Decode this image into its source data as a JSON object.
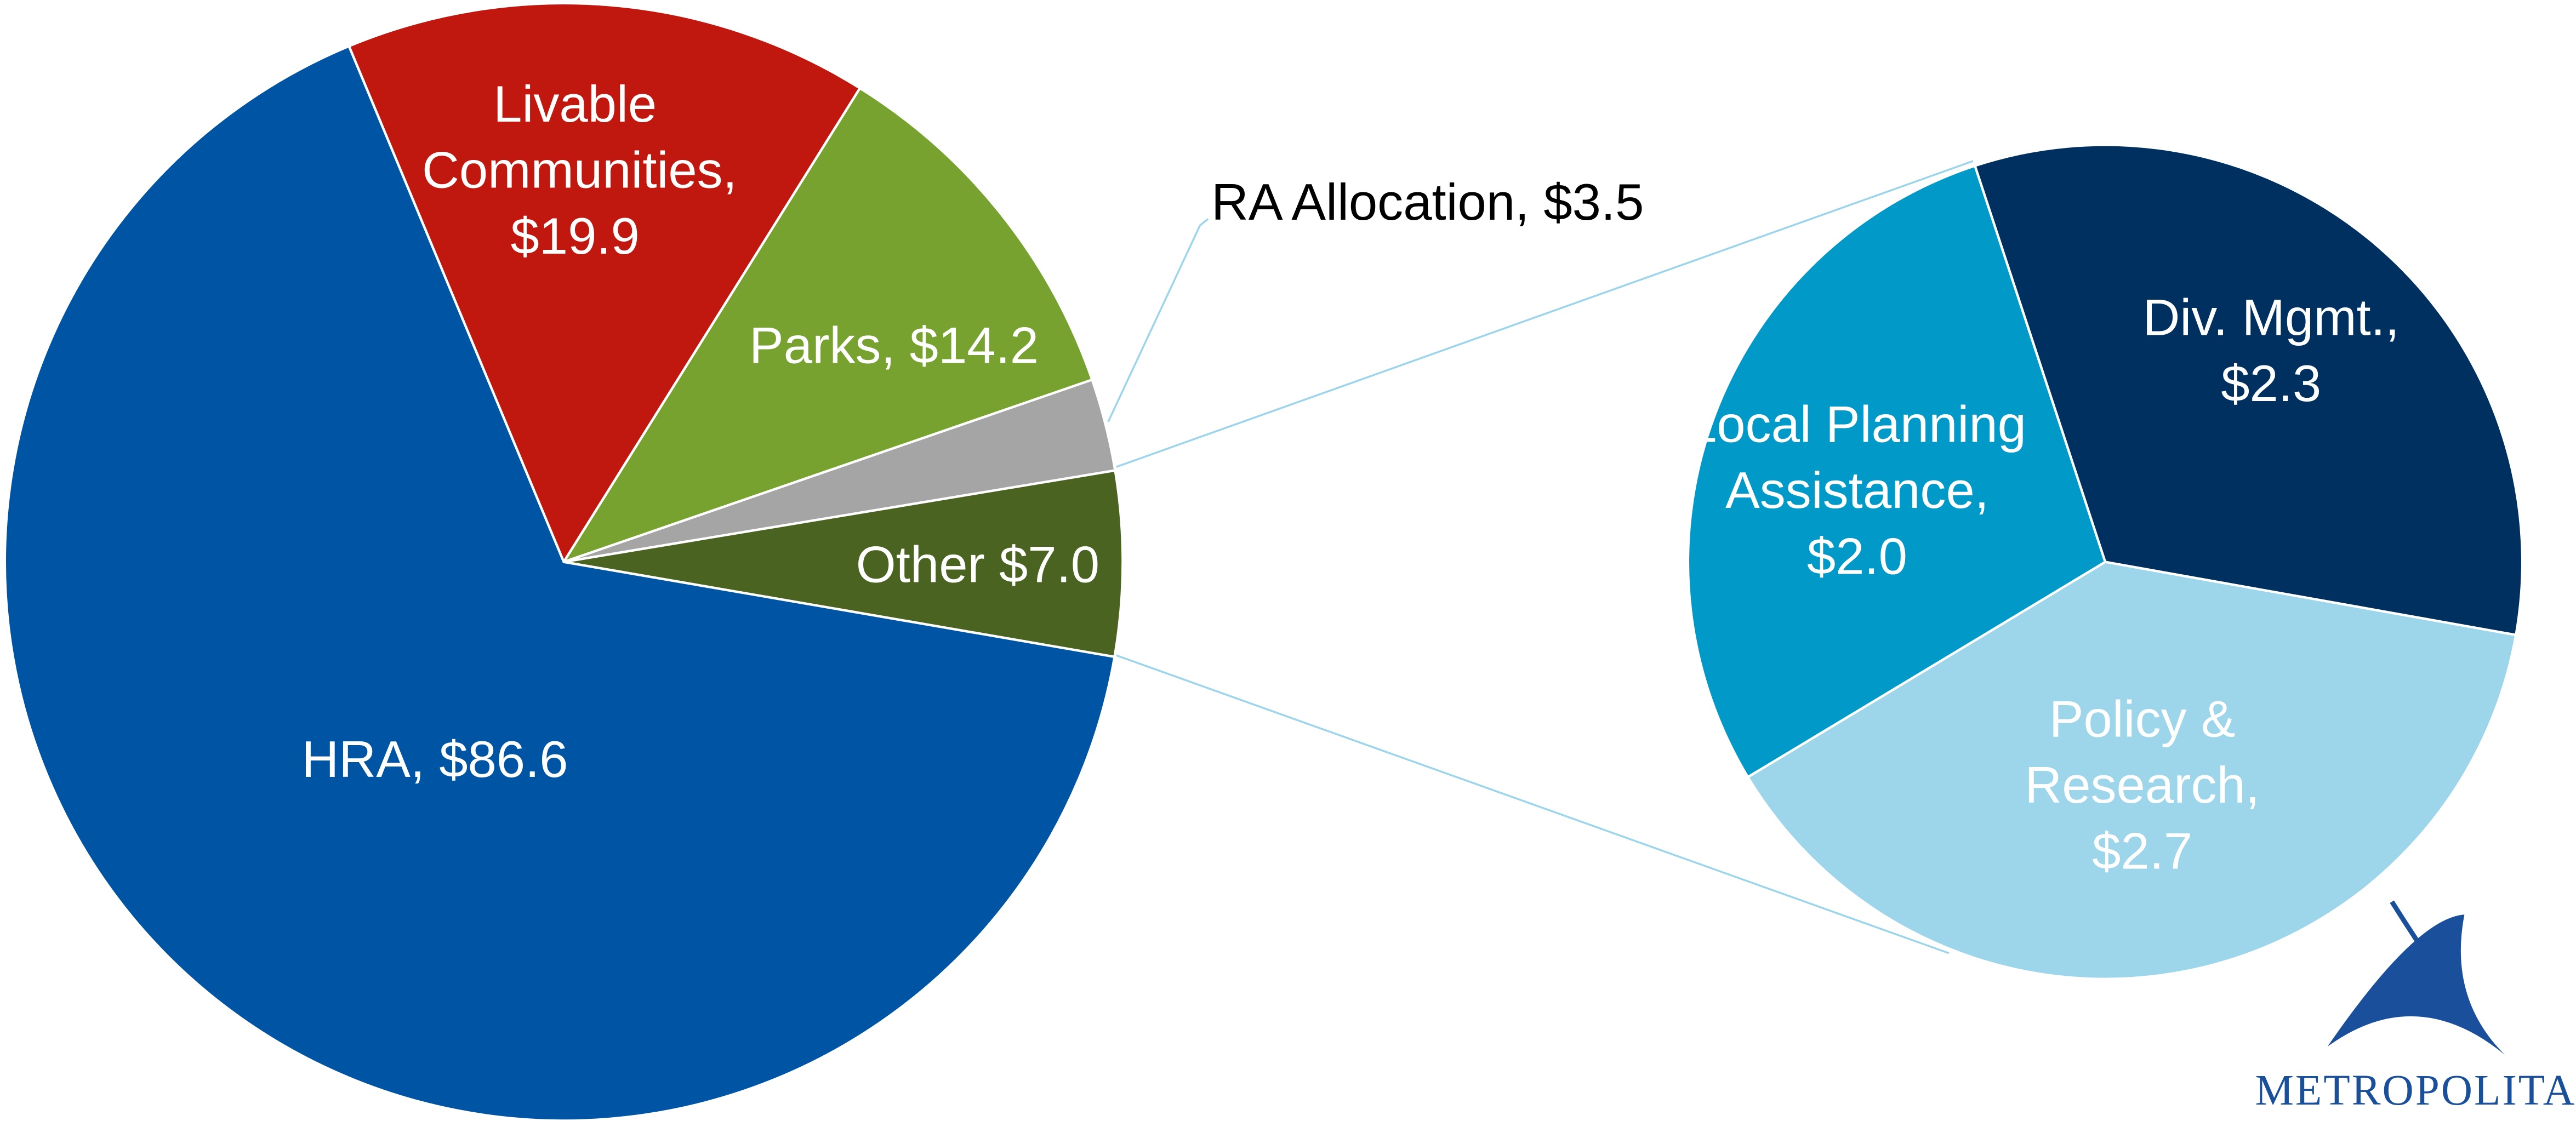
{
  "chart_data": [
    {
      "type": "pie",
      "categories": [
        "Livable Communities",
        "Parks",
        "RA Allocation",
        "Other",
        "HRA"
      ],
      "values": [
        19.9,
        14.2,
        3.5,
        7.0,
        86.6
      ],
      "labels": [
        "Livable Communities, $19.9",
        "Parks, $14.2",
        "RA Allocation, $3.5",
        "Other $7.0",
        "HRA, $86.6"
      ],
      "colors": [
        "#c0180f",
        "#78a22f",
        "#a5a5a5",
        "#4a6320",
        "#0054a4"
      ]
    },
    {
      "type": "pie",
      "categories": [
        "Div. Mgmt.",
        "Policy & Research",
        "Local Planning Assistance"
      ],
      "values": [
        2.3,
        2.7,
        2.0
      ],
      "labels": [
        "Div. Mgmt., $2.3",
        "Policy & Research, $2.7",
        "Local Planning Assistance, $2.0"
      ],
      "colors": [
        "#00305f",
        "#9dd5ea",
        "#0099c8"
      ]
    }
  ],
  "logo_text": "METROPOLITA"
}
